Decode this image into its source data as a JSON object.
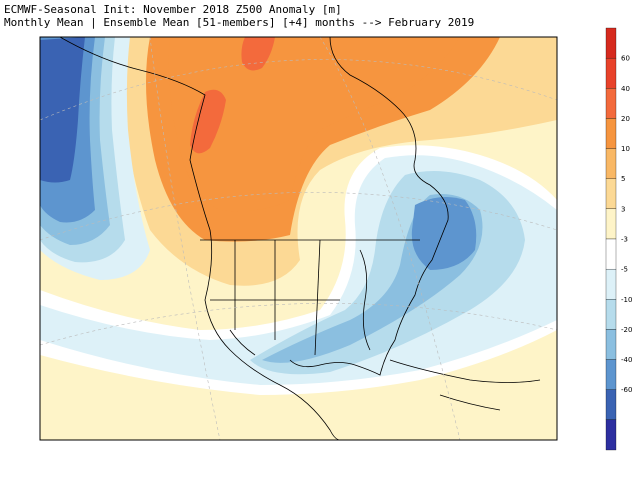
{
  "header": {
    "line1": "ECMWF-Seasonal Init: November 2018 Z500 Anomaly [m]",
    "line2": "Monthly Mean | Ensemble Mean [51-members] [+4] months --> February 2019"
  },
  "colorbar": {
    "levels": [
      {
        "label": "60",
        "color": "#e8422a"
      },
      {
        "label": "40",
        "color": "#f36a3c"
      },
      {
        "label": "20",
        "color": "#f6953f"
      },
      {
        "label": "10",
        "color": "#f9b865"
      },
      {
        "label": "5",
        "color": "#fcd995"
      },
      {
        "label": "3",
        "color": "#fef4c8"
      },
      {
        "label": "-3",
        "color": "#ffffff"
      },
      {
        "label": "-5",
        "color": "#ddf1f8"
      },
      {
        "label": "-10",
        "color": "#b6dcec"
      },
      {
        "label": "-20",
        "color": "#8bbfe0"
      },
      {
        "label": "-40",
        "color": "#5d95cf"
      },
      {
        "label": "-60",
        "color": "#3a63b3"
      }
    ],
    "top_color": "#d62a1e",
    "bottom_color": "#2d2fa0"
  },
  "legend_key": {
    "min": -60,
    "max": 60,
    "units": "m"
  }
}
